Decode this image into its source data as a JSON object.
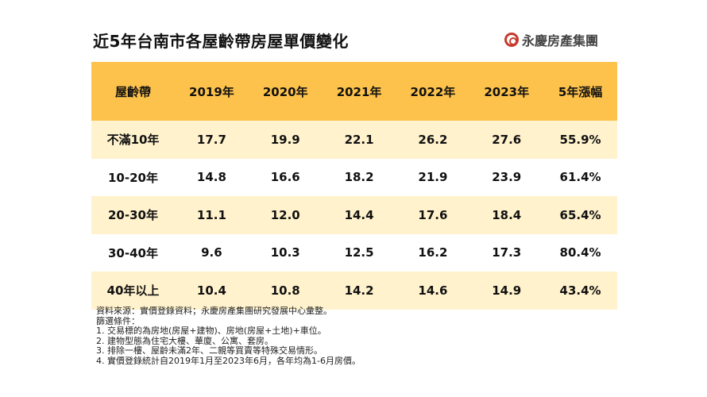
{
  "title": "近5年台南市各屋齡帶房屋單價變化",
  "logo": "永慶房產集團",
  "table": {
    "headers": [
      "屋齡帶",
      "2019年",
      "2020年",
      "2021年",
      "2022年",
      "2023年",
      "5年漲幅"
    ],
    "rows": [
      [
        "不滿10年",
        "17.7",
        "19.9",
        "22.1",
        "26.2",
        "27.6",
        "55.9%"
      ],
      [
        "10-20年",
        "14.8",
        "16.6",
        "18.2",
        "21.9",
        "23.9",
        "61.4%"
      ],
      [
        "20-30年",
        "11.1",
        "12.0",
        "14.4",
        "17.6",
        "18.4",
        "65.4%"
      ],
      [
        "30-40年",
        "9.6",
        "10.3",
        "12.5",
        "16.2",
        "17.3",
        "80.4%"
      ],
      [
        "40年以上",
        "10.4",
        "10.8",
        "14.2",
        "14.6",
        "14.9",
        "43.4%"
      ]
    ]
  },
  "notes": [
    "資料來源：實價登錄資料；永慶房產集團研究發展中心彙整。",
    "篩選條件：",
    "1. 交易標的為房地(房屋+建物)、房地(房屋+土地)+車位。",
    "2. 建物型態為住宅大樓、華廈、公寓、套房。",
    "3. 排除一樓、屋齡未滿2年、二親等買賣等特殊交易情形。",
    "4. 實價登錄統計自2019年1月至2023年6月，各年均為1-6月房價。"
  ]
}
